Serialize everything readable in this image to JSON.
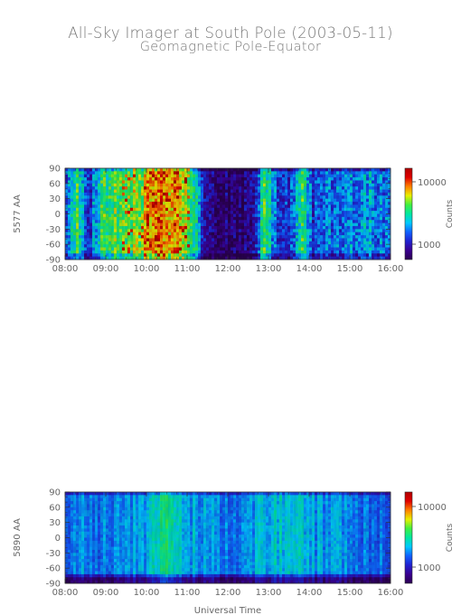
{
  "header": {
    "title": "All-Sky Imager at South Pole (2003-05-11)",
    "subtitle": "Geomagnetic Pole-Equator"
  },
  "chart_data": [
    {
      "type": "heatmap",
      "ylabel": "5577 AA",
      "xlabel": "",
      "colorbar_label": "Counts",
      "colorbar_ticks": [
        "10000",
        "1000"
      ],
      "colorbar_scale": "log",
      "x_ticks": [
        "08:00",
        "09:00",
        "10:00",
        "11:00",
        "12:00",
        "13:00",
        "14:00",
        "15:00",
        "16:00"
      ],
      "y_ticks": [
        "90",
        "60",
        "30",
        "0",
        "-30",
        "-60",
        "-90"
      ],
      "xlim": [
        8,
        16
      ],
      "ylim": [
        -90,
        90
      ],
      "activity_profile": [
        {
          "t": 8.0,
          "level": 0.3
        },
        {
          "t": 8.3,
          "level": 0.55
        },
        {
          "t": 8.6,
          "level": 0.22
        },
        {
          "t": 8.9,
          "level": 0.55
        },
        {
          "t": 9.4,
          "level": 0.6
        },
        {
          "t": 9.8,
          "level": 0.65
        },
        {
          "t": 10.2,
          "level": 0.8
        },
        {
          "t": 10.8,
          "level": 0.78
        },
        {
          "t": 11.2,
          "level": 0.5
        },
        {
          "t": 11.4,
          "level": 0.22
        },
        {
          "t": 11.6,
          "level": 0.1
        },
        {
          "t": 12.3,
          "level": 0.05
        },
        {
          "t": 12.6,
          "level": 0.12
        },
        {
          "t": 12.9,
          "level": 0.55
        },
        {
          "t": 13.2,
          "level": 0.3
        },
        {
          "t": 13.5,
          "level": 0.2
        },
        {
          "t": 13.8,
          "level": 0.55
        },
        {
          "t": 14.1,
          "level": 0.25
        },
        {
          "t": 14.5,
          "level": 0.3
        },
        {
          "t": 15.0,
          "level": 0.35
        },
        {
          "t": 15.5,
          "level": 0.38
        },
        {
          "t": 16.0,
          "level": 0.3
        }
      ]
    },
    {
      "type": "heatmap",
      "ylabel": "5890 AA",
      "xlabel": "Universal Time",
      "colorbar_label": "Counts",
      "colorbar_ticks": [
        "10000",
        "1000"
      ],
      "colorbar_scale": "log",
      "x_ticks": [
        "08:00",
        "09:00",
        "10:00",
        "11:00",
        "12:00",
        "13:00",
        "14:00",
        "15:00",
        "16:00"
      ],
      "y_ticks": [
        "90",
        "60",
        "30",
        "0",
        "-30",
        "-60",
        "-90"
      ],
      "xlim": [
        8,
        16
      ],
      "ylim": [
        -90,
        90
      ],
      "activity_profile": [
        {
          "t": 8.0,
          "level": 0.33
        },
        {
          "t": 9.0,
          "level": 0.34
        },
        {
          "t": 10.0,
          "level": 0.38
        },
        {
          "t": 10.5,
          "level": 0.52
        },
        {
          "t": 11.0,
          "level": 0.4
        },
        {
          "t": 12.0,
          "level": 0.32
        },
        {
          "t": 13.0,
          "level": 0.4
        },
        {
          "t": 13.7,
          "level": 0.42
        },
        {
          "t": 14.5,
          "level": 0.35
        },
        {
          "t": 16.0,
          "level": 0.3
        }
      ]
    }
  ],
  "colors": {
    "colormap": [
      "#2a0050",
      "#3a0090",
      "#2020d0",
      "#1060ff",
      "#00c8ff",
      "#00e8a0",
      "#40f040",
      "#e8f000",
      "#ff8000",
      "#e00000",
      "#b00000"
    ],
    "axis": "#444444",
    "text": "#666666"
  }
}
